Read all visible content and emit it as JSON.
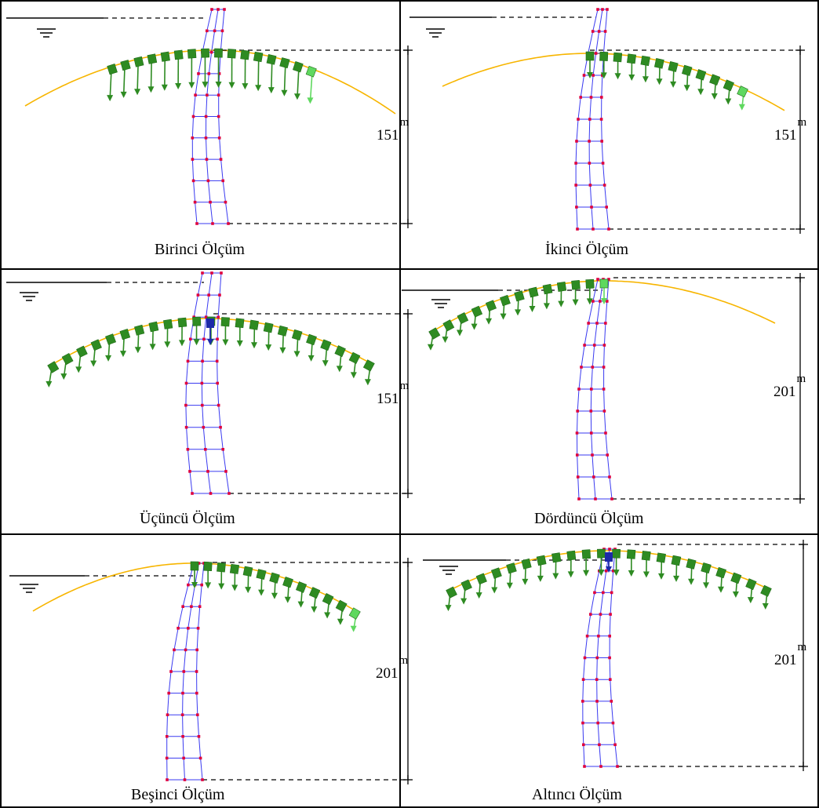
{
  "colors": {
    "arch_curve": "#f7b500",
    "load_green": "#2e8b22",
    "load_light": "#5fd85f",
    "mesh": "#3a3af0",
    "node": "#e0003c",
    "point_load": "#1c2aa8",
    "lines": "#000000"
  },
  "icons": {
    "water_level": "water-level-symbol"
  },
  "panels": [
    {
      "caption": "Birinci Ölçüm",
      "height_value": "151",
      "height_unit": "m"
    },
    {
      "caption": "İkinci Ölçüm",
      "height_value": "151",
      "height_unit": "m"
    },
    {
      "caption": "Üçüncü Ölçüm",
      "height_value": "151",
      "height_unit": "m"
    },
    {
      "caption": "Dördüncü Ölçüm",
      "height_value": "201",
      "height_unit": "m"
    },
    {
      "caption": "Beşinci Ölçüm",
      "height_value": "201",
      "height_unit": "m"
    },
    {
      "caption": "Altıncı Ölçüm",
      "height_value": "201",
      "height_unit": "m"
    }
  ]
}
